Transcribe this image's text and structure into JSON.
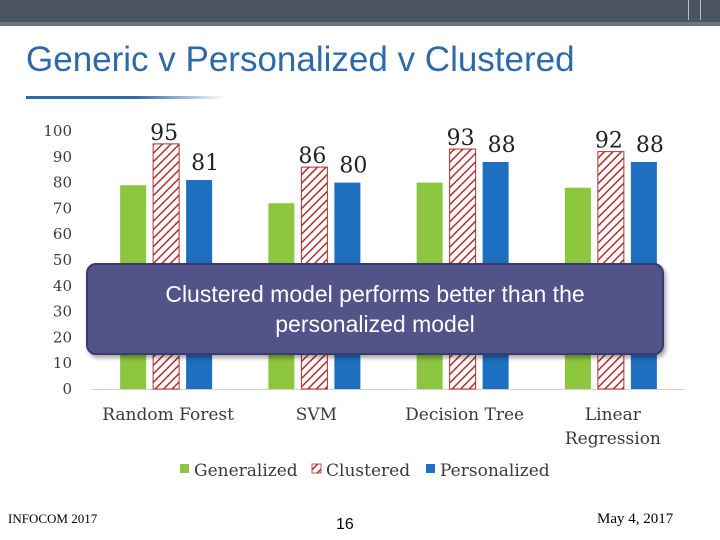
{
  "slide": {
    "title": "Generic v Personalized v Clustered",
    "callout": "Clustered model performs better than  the personalized model",
    "footer_left": "INFOCOM 2017",
    "page_number": "16",
    "footer_right": "May 4, 2017"
  },
  "colors": {
    "generalized": "#8cc63e",
    "clustered_fill": "#ffffff",
    "clustered_hatch": "#b22d2d",
    "personalized": "#1e6fc0",
    "axis_text": "#3a3a3a"
  },
  "chart_data": {
    "type": "bar",
    "title": "",
    "categories": [
      "Random Forest",
      "SVM",
      "Decision Tree",
      "Linear Regression"
    ],
    "category_lines": [
      [
        "Random Forest"
      ],
      [
        "SVM"
      ],
      [
        "Decision Tree"
      ],
      [
        "Linear",
        "Regression"
      ]
    ],
    "series": [
      {
        "name": "Generalized",
        "values": [
          79,
          72,
          80,
          78
        ],
        "labels": [
          null,
          null,
          null,
          null
        ]
      },
      {
        "name": "Clustered",
        "values": [
          95,
          86,
          93,
          92
        ],
        "labels": [
          "95",
          "86",
          "93",
          "92"
        ]
      },
      {
        "name": "Personalized",
        "values": [
          81,
          80,
          88,
          88
        ],
        "labels": [
          "81",
          "80",
          "88",
          "88"
        ]
      }
    ],
    "ylim": [
      0,
      100
    ],
    "yticks": [
      0,
      10,
      20,
      30,
      40,
      50,
      60,
      70,
      80,
      90,
      100
    ],
    "xlabel": "",
    "ylabel": "",
    "grid": false,
    "legend": "bottom"
  }
}
